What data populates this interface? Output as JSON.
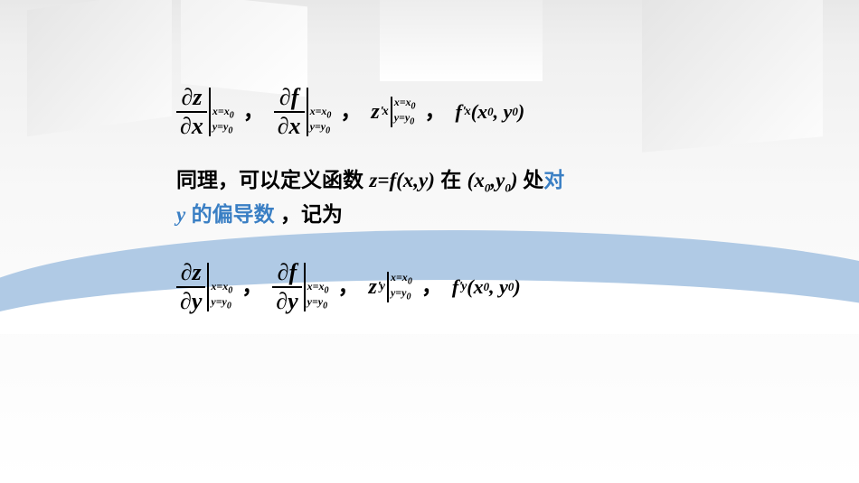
{
  "notation_x": {
    "frac1_num": "∂z",
    "frac1_den": "∂x",
    "frac2_num": "∂f",
    "frac2_den": "∂x",
    "eval_line1": "x=x",
    "eval_line2": "y=y",
    "sub0": "0",
    "prime1_base": "z",
    "prime1_sup": "′",
    "prime1_sub": "x",
    "fn_label": "f",
    "fn_sup": "′",
    "fn_sub": "x",
    "fn_args_open": "(x",
    "fn_args_mid": ", y",
    "fn_args_close": ")",
    "comma": "，"
  },
  "text": {
    "line1_a": "同理，可以定义函数 ",
    "line1_fn": "z=f(x,y)",
    "line1_b": " 在 ",
    "line1_pt_open": "(x",
    "line1_pt_mid": ",y",
    "line1_pt_close": ")",
    "line1_c": " 处",
    "line2_hl_a": "对 ",
    "line2_hl_var": "y",
    "line2_hl_b": " 的偏导数",
    "line2_c": "，记为"
  },
  "notation_y": {
    "frac1_num": "∂z",
    "frac1_den": "∂y",
    "frac2_num": "∂f",
    "frac2_den": "∂y",
    "prime1_base": "z",
    "prime1_sup": "′",
    "prime1_sub": "y",
    "fn_label": "f",
    "fn_sup": "′",
    "fn_sub": "y",
    "fn_args_open": "(x",
    "fn_args_mid": ", y",
    "fn_args_close": ")"
  },
  "style": {
    "highlight_color": "#3a7fc4",
    "wave_color": "#a7c4e2",
    "text_color": "#000000",
    "bg_top": "#e8e8e8",
    "bg_bottom": "#ffffff"
  }
}
